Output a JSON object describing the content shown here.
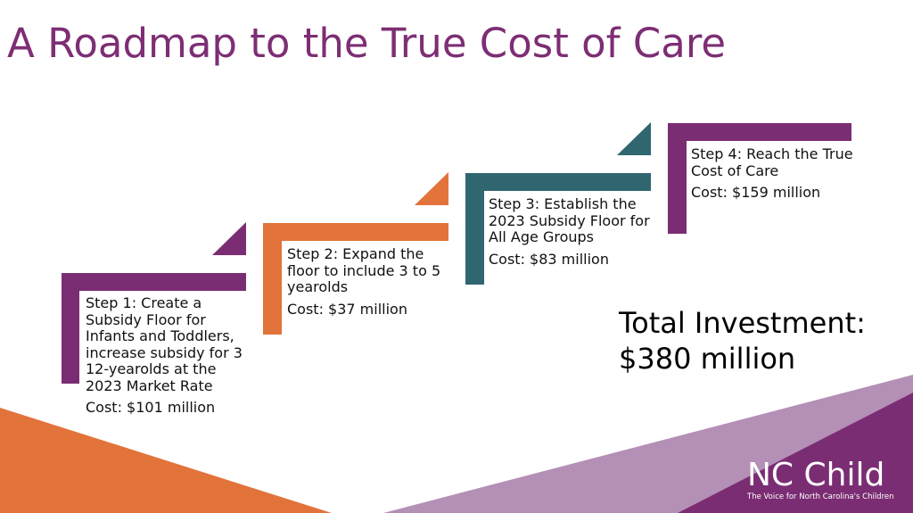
{
  "title": "A Roadmap to the True Cost of Care",
  "steps": [
    {
      "lines": [
        "Step 1: Create a",
        "Subsidy Floor for",
        "Infants and Toddlers,",
        "increase subsidy for 3",
        "12-yearolds at the",
        "2023 Market Rate"
      ],
      "cost": "Cost: $101 million",
      "color": "#7b2d73"
    },
    {
      "lines": [
        "Step 2: Expand the",
        "floor to include 3 to 5",
        "yearolds"
      ],
      "cost": "Cost: $37 million",
      "color": "#e2733b"
    },
    {
      "lines": [
        "Step 3: Establish the",
        "2023 Subsidy Floor for",
        "All Age Groups"
      ],
      "cost": "Cost: $83 million",
      "color": "#2f6670"
    },
    {
      "lines": [
        "Step 4: Reach the True",
        "Cost of Care"
      ],
      "cost": "Cost: $159 million",
      "color": "#7b2d73"
    }
  ],
  "total": {
    "line1": "Total Investment:",
    "line2": "$380 million"
  },
  "logo": {
    "name": "NC Child",
    "tagline": "The Voice for North Carolina's Children"
  },
  "colors": {
    "purple": "#7b2d73",
    "orange": "#e2733b",
    "teal": "#2f6670",
    "lilac": "#b48fb6"
  }
}
